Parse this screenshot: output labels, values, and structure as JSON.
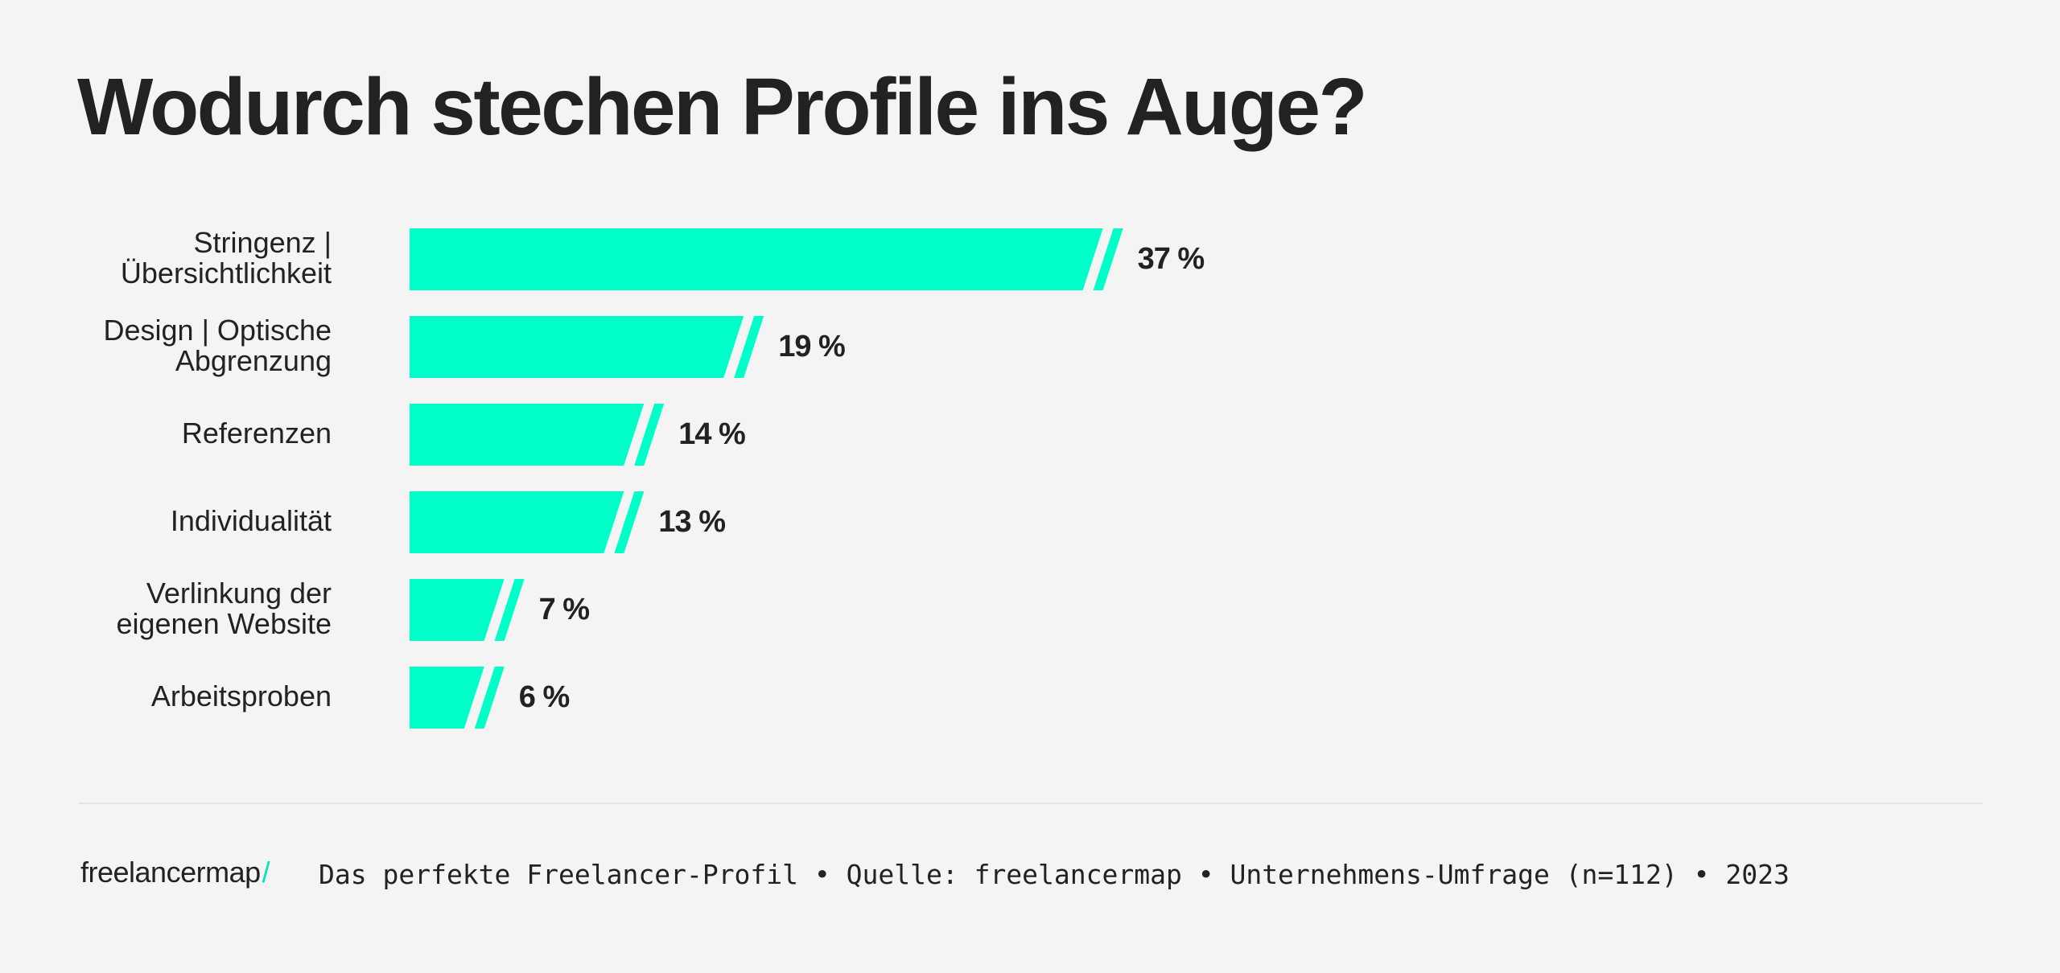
{
  "chart_data": {
    "type": "bar",
    "orientation": "horizontal",
    "title": "Wodurch stechen Profile ins Auge?",
    "categories": [
      "Stringenz | Übersichtlichkeit",
      "Design | Optische Abgrenzung",
      "Referenzen",
      "Individualität",
      "Verlinkung der eigenen Website",
      "Arbeitsproben"
    ],
    "category_lines": [
      [
        "Stringenz |",
        "Übersichtlichkeit"
      ],
      [
        "Design | Optische",
        "Abgrenzung"
      ],
      [
        "Referenzen"
      ],
      [
        "Individualität"
      ],
      [
        "Verlinkung der",
        "eigenen Website"
      ],
      [
        "Arbeitsproben"
      ]
    ],
    "values": [
      37,
      19,
      14,
      13,
      7,
      6
    ],
    "value_labels": [
      "37 %",
      "19 %",
      "14 %",
      "13 %",
      "7 %",
      "6 %"
    ],
    "unit": "%",
    "grid": false,
    "bar_color": "#00ffc8"
  },
  "footer": {
    "logo": "freelancermap",
    "logo_slash": "/",
    "source": "Das perfekte Freelancer-Profil • Quelle: freelancermap • Unternehmens-Umfrage (n=112) • 2023"
  },
  "colors": {
    "background": "#f4f4f4",
    "text": "#222222",
    "accent": "#00ffc8"
  }
}
